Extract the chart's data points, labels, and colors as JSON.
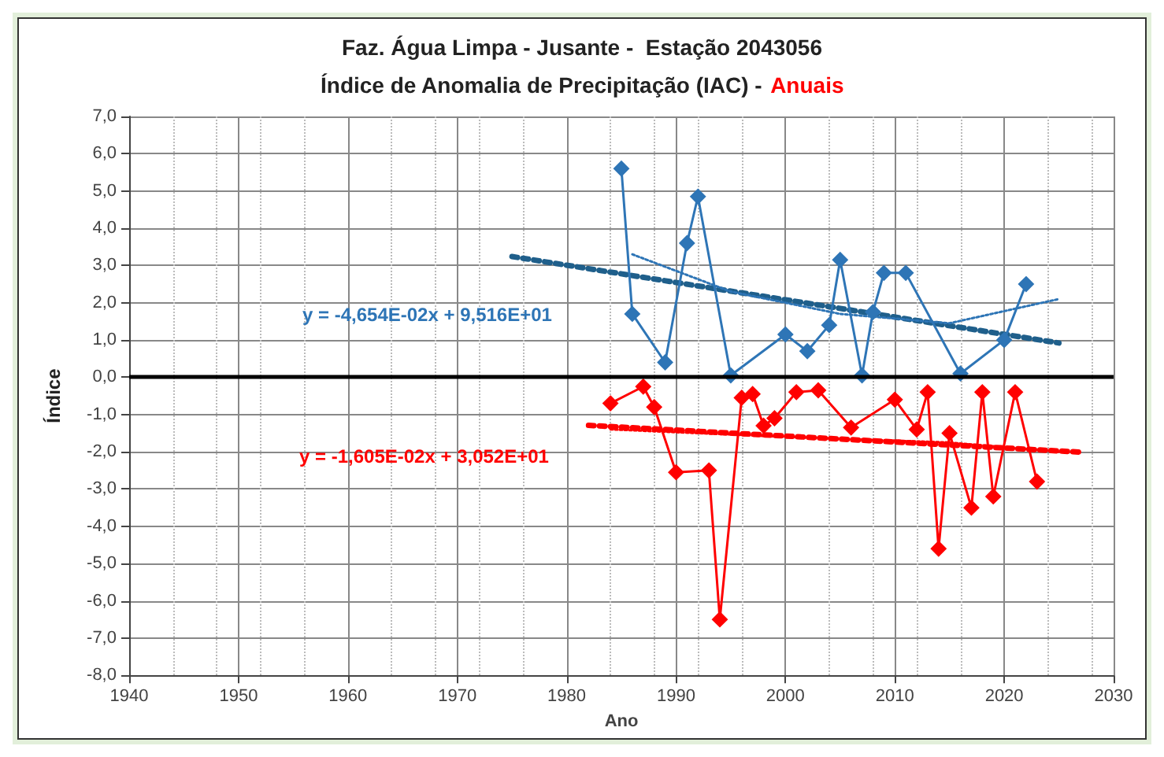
{
  "chart_data": {
    "type": "line",
    "title": "Faz. Água Limpa - Jusante -  Estação 2043056",
    "subtitle": "Índice de Anomalia de Precipitação (IAC) - Anuais",
    "xlabel": "Ano",
    "ylabel": "Índice",
    "xlim": [
      1940,
      2030
    ],
    "xticks": [
      1940,
      1950,
      1960,
      1970,
      1980,
      1990,
      2000,
      2010,
      2020,
      2030
    ],
    "ylim": [
      -8,
      7
    ],
    "yticks": [
      {
        "value": -8,
        "label": "-8,0"
      },
      {
        "value": -7,
        "label": "-7,0"
      },
      {
        "value": -6,
        "label": "-6,0"
      },
      {
        "value": -5,
        "label": "-5,0"
      },
      {
        "value": -4,
        "label": "-4,0"
      },
      {
        "value": -3,
        "label": "-3,0"
      },
      {
        "value": -2,
        "label": "-2,0"
      },
      {
        "value": -1,
        "label": "-1,0"
      },
      {
        "value": 0,
        "label": "0,0"
      },
      {
        "value": 1,
        "label": "1,0"
      },
      {
        "value": 2,
        "label": "2,0"
      },
      {
        "value": 3,
        "label": "3,0"
      },
      {
        "value": 4,
        "label": "4,0"
      },
      {
        "value": 5,
        "label": "5,0"
      },
      {
        "value": 6,
        "label": "6,0"
      },
      {
        "value": 7,
        "label": "7,0"
      }
    ],
    "grid": true,
    "marker": "diamond",
    "series": [
      {
        "color": "#2e75b6",
        "x": [
          1985,
          1986,
          1989,
          1991,
          1992,
          1995,
          2000,
          2002,
          2004,
          2005,
          2007,
          2008,
          2009,
          2011,
          2016,
          2020,
          2022
        ],
        "values": [
          5.6,
          1.7,
          0.4,
          3.6,
          4.85,
          0.05,
          1.15,
          0.7,
          1.4,
          3.15,
          0.05,
          1.75,
          2.8,
          2.8,
          0.1,
          1.0,
          2.5
        ]
      },
      {
        "color": "#ff0000",
        "x": [
          1984,
          1987,
          1988,
          1990,
          1993,
          1994,
          1996,
          1997,
          1998,
          1999,
          2001,
          2003,
          2006,
          2010,
          2012,
          2013,
          2014,
          2015,
          2017,
          2018,
          2019,
          2021,
          2023
        ],
        "values": [
          -0.7,
          -0.25,
          -0.8,
          -2.55,
          -2.5,
          -6.5,
          -0.55,
          -0.45,
          -1.3,
          -1.1,
          -0.4,
          -0.35,
          -1.35,
          -0.6,
          -1.4,
          -0.4,
          -4.6,
          -1.5,
          -3.5,
          -0.4,
          -3.2,
          -0.4,
          -2.8
        ]
      },
      {
        "color": "#1f5f8b",
        "line_style": "dotted",
        "marker": "none",
        "x": [
          1975,
          2025
        ],
        "values": [
          3.24,
          0.92
        ]
      },
      {
        "color": "#ff0000",
        "line_style": "dotted",
        "marker": "none",
        "x": [
          1982,
          2027
        ],
        "values": [
          -1.29,
          -2.01
        ]
      },
      {
        "color": "#2e75b6",
        "line_style": "dotted",
        "marker": "none",
        "x": [
          1986,
          1995,
          2005,
          2015,
          2025
        ],
        "values": [
          3.3,
          2.3,
          1.7,
          1.45,
          2.1
        ]
      },
      {
        "color": "#ff0000",
        "line_style": "dotted",
        "marker": "none",
        "x": [
          1984,
          2000,
          2015,
          2025
        ],
        "values": [
          -1.4,
          -1.6,
          -1.75,
          -2.0
        ]
      }
    ],
    "annotations": [
      "y = -4,654E-02x + 9,516E+01",
      "y = -1,605E-02x + 3,052E+01"
    ],
    "ref_lines": [
      {
        "axis": "y",
        "value": 0,
        "color": "#000000"
      }
    ]
  }
}
